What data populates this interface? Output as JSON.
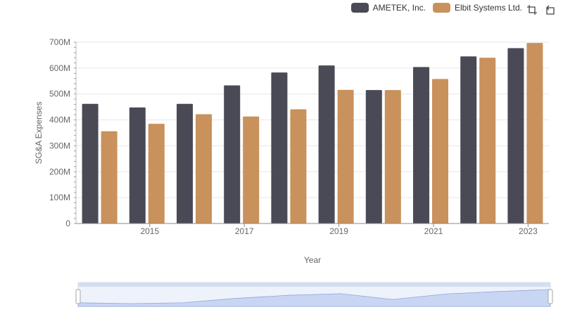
{
  "legend": {
    "items": [
      {
        "label": "AMETEK, Inc.",
        "color": "#4a4a56"
      },
      {
        "label": "Elbit Systems Ltd.",
        "color": "#c9915c"
      }
    ]
  },
  "toolbar": {
    "icons": [
      "crop-icon",
      "restore-icon"
    ]
  },
  "chart_data": {
    "type": "bar",
    "categories": [
      "2014",
      "2015",
      "2016",
      "2017",
      "2018",
      "2019",
      "2020",
      "2021",
      "2022",
      "2023"
    ],
    "x_tick_labels": [
      "2015",
      "2017",
      "2019",
      "2021",
      "2023"
    ],
    "series": [
      {
        "name": "AMETEK, Inc.",
        "color": "#4a4a56",
        "values": [
          462,
          448,
          462,
          533,
          583,
          610,
          515,
          604,
          645,
          677
        ]
      },
      {
        "name": "Elbit Systems Ltd.",
        "color": "#c9915c",
        "values": [
          356,
          385,
          422,
          413,
          441,
          516,
          515,
          558,
          640,
          697
        ]
      }
    ],
    "value_unit": "M",
    "ylim": [
      0,
      700
    ],
    "y_ticks": [
      "0",
      "100M",
      "200M",
      "300M",
      "400M",
      "500M",
      "600M",
      "700M"
    ],
    "xlabel": "Year",
    "ylabel": "SG&A Expenses",
    "grid": true,
    "legend_position": "top-right",
    "slider": {
      "start": 0,
      "end": 1
    }
  }
}
